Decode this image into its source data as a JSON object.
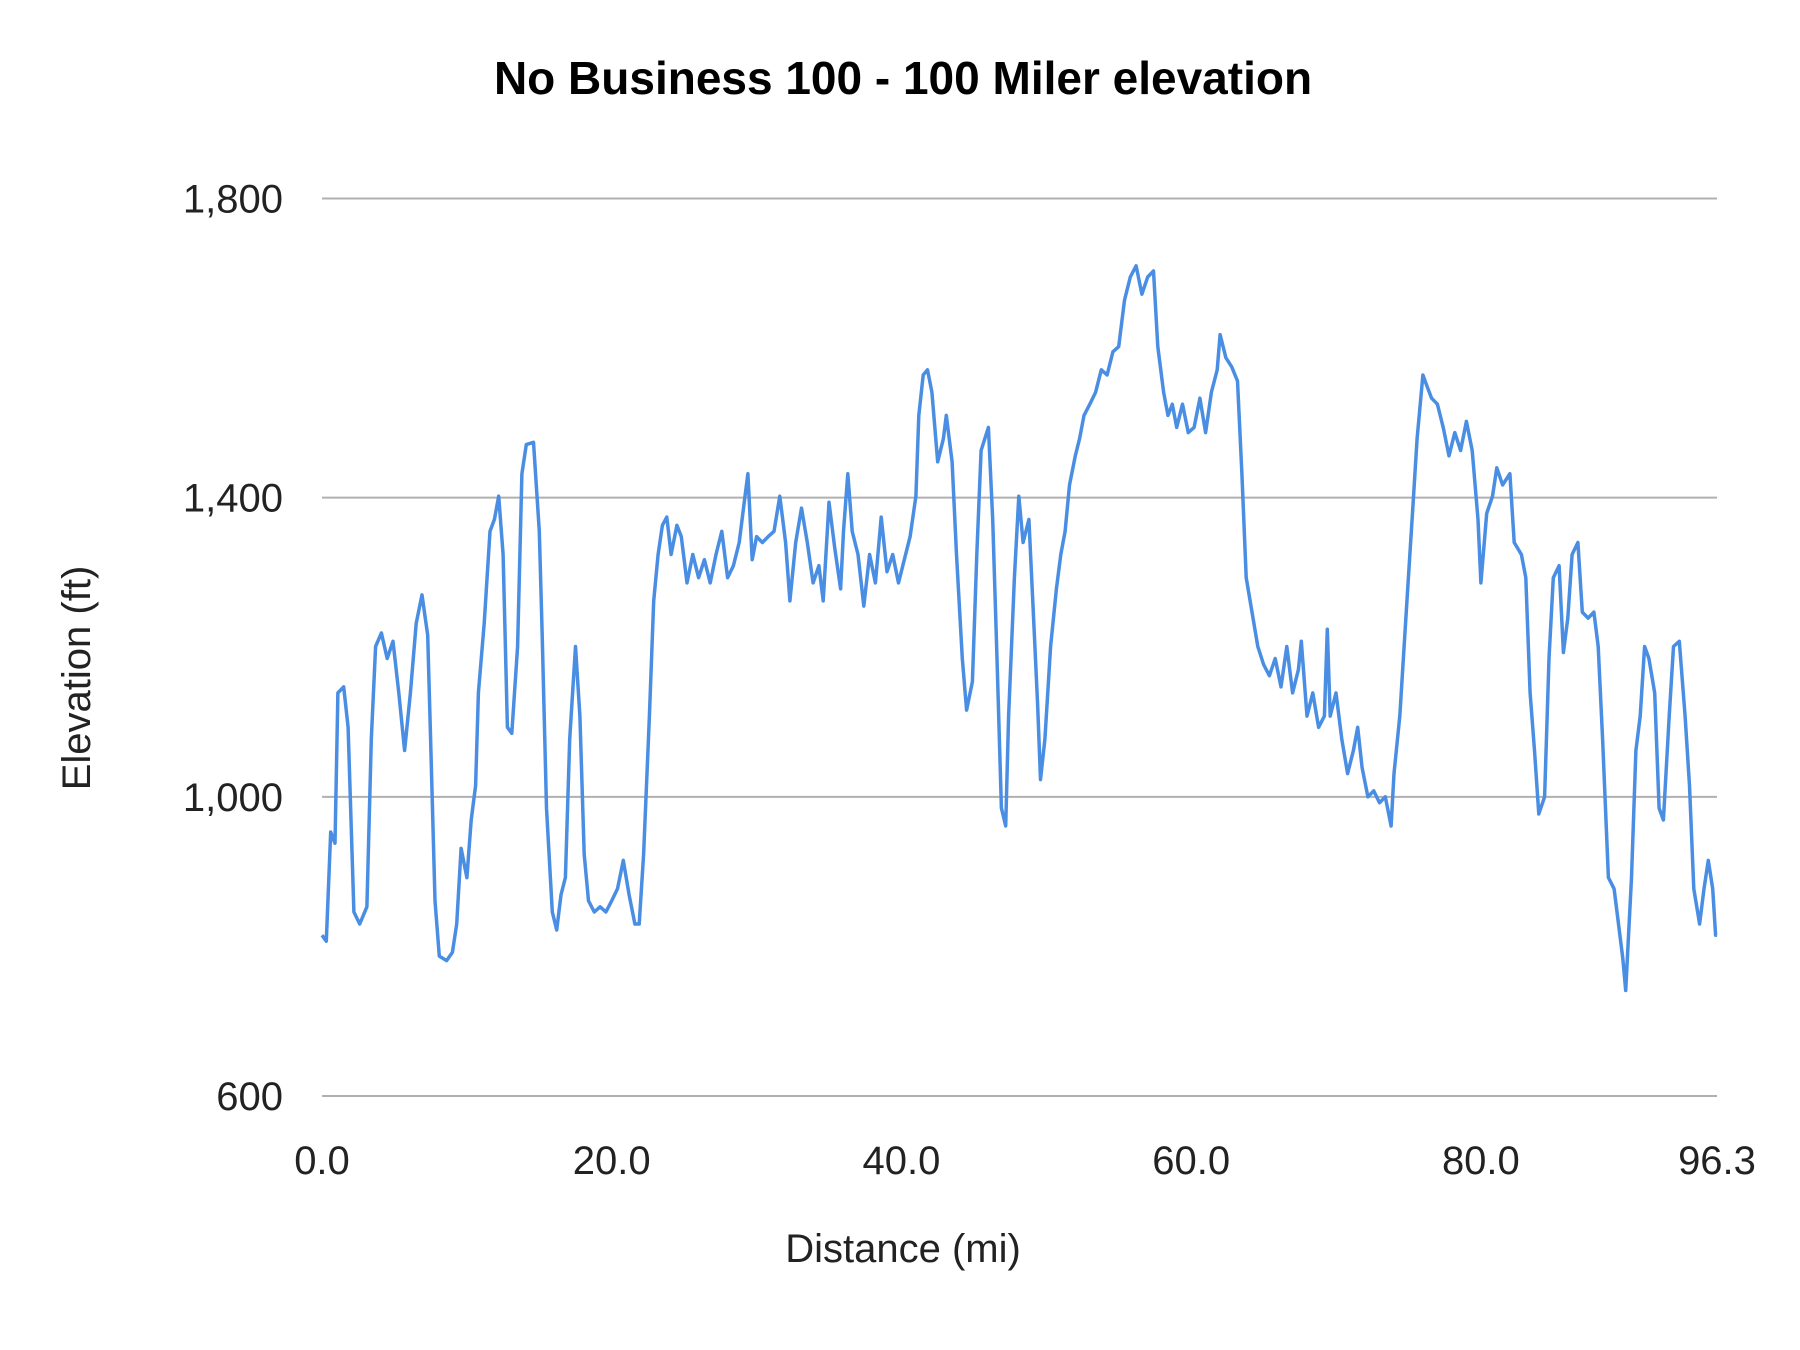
{
  "chart_data": {
    "type": "line",
    "title": "No Business 100 - 100 Miler elevation",
    "xlabel": "Distance (mi)",
    "ylabel": "Elevation (ft)",
    "xlim": [
      0,
      96.3
    ],
    "ylim": [
      600,
      1800
    ],
    "xticks": [
      "0.0",
      "20.0",
      "40.0",
      "60.0",
      "80.0",
      "96.3"
    ],
    "xtick_values": [
      0,
      20,
      40,
      60,
      80,
      96.3
    ],
    "yticks": [
      "600",
      "1,000",
      "1,400",
      "1,800"
    ],
    "ytick_values": [
      600,
      1000,
      1400,
      1800
    ],
    "grid": "horizontal",
    "line_color": "#4a8ee3",
    "grid_color": "#b0b0b0",
    "series": [
      {
        "x": [
          0,
          0.3,
          0.6,
          0.9,
          1.1,
          1.5,
          1.8,
          2.2,
          2.6,
          3.1,
          3.4,
          3.7,
          4.1,
          4.5,
          4.9,
          5.3,
          5.7,
          6.1,
          6.5,
          6.9,
          7.3,
          7.5,
          7.8,
          8.1,
          8.6,
          9.0,
          9.3,
          9.6,
          10.0,
          10.3,
          10.6,
          10.8,
          11.2,
          11.6,
          11.9,
          12.2,
          12.5,
          12.8,
          13.1,
          13.5,
          13.8,
          14.1,
          14.6,
          15.0,
          15.2,
          15.5,
          15.9,
          16.2,
          16.5,
          16.8,
          17.1,
          17.5,
          17.8,
          18.1,
          18.4,
          18.8,
          19.2,
          19.6,
          20.0,
          20.4,
          20.8,
          21.2,
          21.6,
          21.9,
          22.2,
          22.6,
          22.9,
          23.2,
          23.5,
          23.8,
          24.1,
          24.5,
          24.8,
          25.2,
          25.6,
          26.0,
          26.4,
          26.8,
          27.2,
          27.6,
          28.0,
          28.4,
          28.8,
          29.2,
          29.4,
          29.7,
          30.0,
          30.4,
          30.8,
          31.2,
          31.6,
          32.0,
          32.3,
          32.7,
          33.1,
          33.5,
          33.9,
          34.3,
          34.6,
          35.0,
          35.4,
          35.8,
          36.0,
          36.3,
          36.6,
          37.0,
          37.4,
          37.8,
          38.2,
          38.6,
          39.0,
          39.4,
          39.8,
          40.2,
          40.6,
          41.0,
          41.2,
          41.5,
          41.8,
          42.1,
          42.5,
          42.9,
          43.1,
          43.5,
          43.8,
          44.2,
          44.5,
          44.9,
          45.2,
          45.5,
          46.0,
          46.3,
          46.6,
          46.9,
          47.2,
          47.4,
          47.8,
          48.1,
          48.4,
          48.8,
          49.1,
          49.4,
          49.6,
          49.9,
          50.3,
          50.7,
          51.0,
          51.3,
          51.6,
          52.0,
          52.3,
          52.6,
          53.0,
          53.4,
          53.8,
          54.2,
          54.6,
          55.0,
          55.4,
          55.8,
          56.2,
          56.6,
          57.0,
          57.4,
          57.7,
          58.1,
          58.4,
          58.7,
          59.0,
          59.4,
          59.8,
          60.2,
          60.6,
          61.0,
          61.4,
          61.8,
          62.0,
          62.4,
          62.8,
          63.2,
          63.5,
          63.8,
          64.2,
          64.6,
          65.0,
          65.4,
          65.8,
          66.2,
          66.6,
          67.0,
          67.4,
          67.6,
          68.0,
          68.4,
          68.8,
          69.2,
          69.4,
          69.6,
          70.0,
          70.4,
          70.8,
          71.2,
          71.5,
          71.8,
          72.2,
          72.6,
          73.0,
          73.4,
          73.8,
          74.0,
          74.4,
          74.7,
          75.0,
          75.3,
          75.6,
          76.0,
          76.3,
          76.6,
          77.0,
          77.4,
          77.8,
          78.2,
          78.6,
          79.0,
          79.4,
          79.8,
          80.0,
          80.4,
          80.8,
          81.1,
          81.5,
          82.0,
          82.3,
          82.8,
          83.1,
          83.4,
          83.7,
          84.0,
          84.4,
          84.7,
          85.0,
          85.4,
          85.7,
          86.0,
          86.3,
          86.7,
          87.0,
          87.4,
          87.8,
          88.1,
          88.4,
          88.8,
          89.2,
          89.5,
          89.8,
          90.0,
          90.4,
          90.7,
          91.0,
          91.3,
          91.6,
          92.0,
          92.3,
          92.6,
          93.0,
          93.3,
          93.7,
          94.1,
          94.4,
          94.7,
          95.1,
          95.4,
          95.7,
          96.0,
          96.2,
          96.3
        ],
        "y": [
          815,
          807,
          953,
          938,
          1139,
          1147,
          1093,
          846,
          830,
          853,
          1077,
          1201,
          1219,
          1185,
          1208,
          1139,
          1062,
          1139,
          1232,
          1270,
          1216,
          1077,
          861,
          787,
          781,
          792,
          830,
          931,
          892,
          969,
          1015,
          1139,
          1232,
          1355,
          1371,
          1402,
          1324,
          1093,
          1085,
          1201,
          1432,
          1471,
          1474,
          1355,
          1216,
          985,
          846,
          822,
          869,
          892,
          1077,
          1201,
          1108,
          923,
          861,
          846,
          853,
          846,
          861,
          877,
          915,
          869,
          830,
          830,
          923,
          1108,
          1262,
          1324,
          1363,
          1374,
          1324,
          1363,
          1348,
          1286,
          1324,
          1293,
          1317,
          1286,
          1324,
          1355,
          1293,
          1309,
          1340,
          1402,
          1432,
          1317,
          1348,
          1340,
          1348,
          1355,
          1402,
          1340,
          1262,
          1340,
          1386,
          1340,
          1286,
          1309,
          1262,
          1394,
          1332,
          1278,
          1355,
          1432,
          1355,
          1324,
          1255,
          1324,
          1286,
          1374,
          1301,
          1324,
          1286,
          1317,
          1348,
          1402,
          1510,
          1564,
          1571,
          1541,
          1448,
          1479,
          1510,
          1448,
          1324,
          1185,
          1116,
          1154,
          1324,
          1463,
          1494,
          1371,
          1185,
          985,
          961,
          1108,
          1293,
          1402,
          1340,
          1371,
          1247,
          1124,
          1023,
          1077,
          1201,
          1278,
          1324,
          1355,
          1417,
          1456,
          1479,
          1510,
          1525,
          1541,
          1571,
          1564,
          1595,
          1602,
          1664,
          1695,
          1710,
          1672,
          1695,
          1703,
          1602,
          1541,
          1510,
          1525,
          1494,
          1525,
          1487,
          1494,
          1533,
          1487,
          1541,
          1571,
          1618,
          1587,
          1575,
          1556,
          1432,
          1293,
          1247,
          1201,
          1177,
          1162,
          1185,
          1147,
          1201,
          1139,
          1170,
          1208,
          1108,
          1139,
          1093,
          1108,
          1224,
          1108,
          1139,
          1077,
          1031,
          1062,
          1093,
          1039,
          1000,
          1008,
          992,
          1000,
          961,
          1031,
          1108,
          1201,
          1293,
          1386,
          1479,
          1564,
          1548,
          1533,
          1525,
          1494,
          1456,
          1487,
          1463,
          1502,
          1463,
          1371,
          1286,
          1379,
          1402,
          1440,
          1417,
          1432,
          1340,
          1324,
          1293,
          1139,
          1062,
          977,
          1000,
          1185,
          1293,
          1309,
          1193,
          1239,
          1324,
          1340,
          1247,
          1239,
          1247,
          1201,
          1077,
          892,
          877,
          830,
          784,
          741,
          892,
          1062,
          1108,
          1201,
          1185,
          1139,
          985,
          969,
          1108,
          1201,
          1208,
          1108,
          1015,
          877,
          830,
          877,
          915,
          877,
          815,
          815
        ]
      }
    ]
  }
}
